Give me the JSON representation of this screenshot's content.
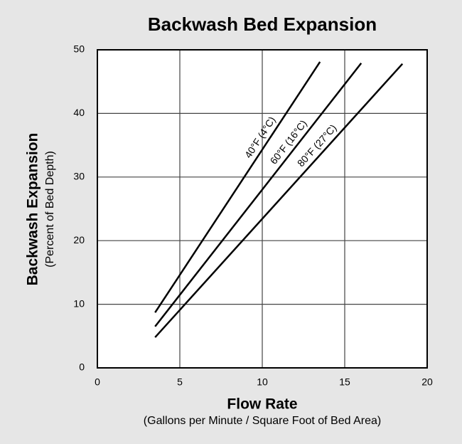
{
  "chart_data": {
    "type": "line",
    "title": "Backwash Bed Expansion",
    "x_label": "Flow Rate",
    "x_sublabel": "(Gallons per Minute / Square Foot of Bed Area)",
    "y_label": "Backwash Expansion",
    "y_sublabel": "(Percent of Bed Depth)",
    "xlim": [
      0,
      20
    ],
    "xticks": [
      0,
      5,
      10,
      15,
      20
    ],
    "ylim": [
      0,
      50
    ],
    "yticks": [
      0,
      10,
      20,
      30,
      40,
      50
    ],
    "grid": true,
    "series": [
      {
        "name": "40°F (4°C)",
        "color": "#000000",
        "x": [
          3.5,
          13.5
        ],
        "values": [
          8.7,
          48.1
        ]
      },
      {
        "name": "60°F (16°C)",
        "color": "#000000",
        "x": [
          3.5,
          16.0
        ],
        "values": [
          6.5,
          47.9
        ]
      },
      {
        "name": "80°F (27°C)",
        "color": "#000000",
        "x": [
          3.5,
          18.5
        ],
        "values": [
          4.8,
          47.8
        ]
      }
    ]
  }
}
